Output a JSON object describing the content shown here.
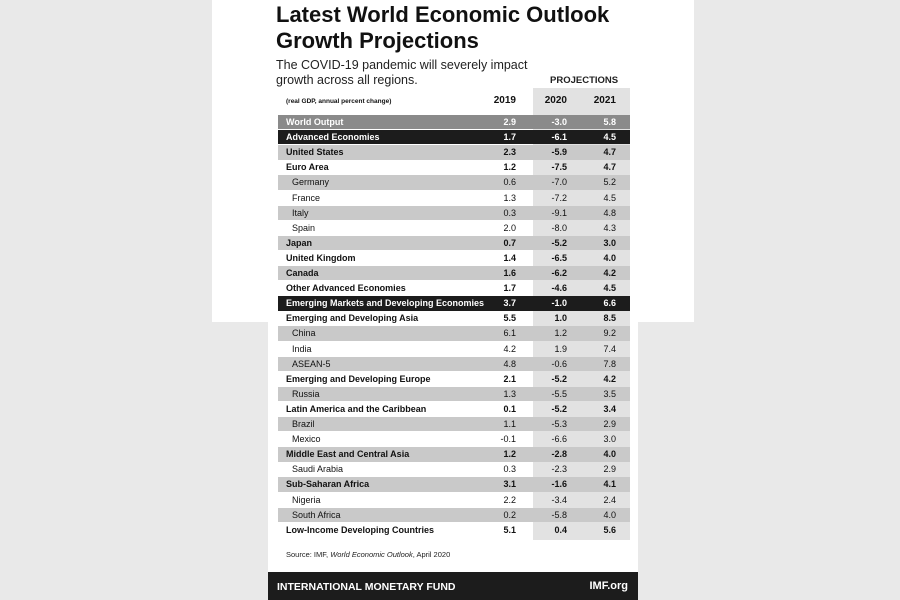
{
  "header": {
    "title": [
      "Latest World Economic Outlook",
      "Growth Projections"
    ],
    "subtitle": "The COVID-19 pandemic will severely impact growth across all regions.",
    "projections_label": "PROJECTIONS"
  },
  "table": {
    "columns": [
      "(real GDP, annual percent change)",
      "2019",
      "2020",
      "2021"
    ],
    "rows": [
      [
        "World Output",
        "2.9",
        "-3.0",
        "5.8"
      ],
      [
        "Advanced Economies",
        "1.7",
        "-6.1",
        "4.5"
      ],
      [
        "United States",
        "2.3",
        "-5.9",
        "4.7"
      ],
      [
        "Euro Area",
        "1.2",
        "-7.5",
        "4.7"
      ],
      [
        "Germany",
        "0.6",
        "-7.0",
        "5.2"
      ],
      [
        "France",
        "1.3",
        "-7.2",
        "4.5"
      ],
      [
        "Italy",
        "0.3",
        "-9.1",
        "4.8"
      ],
      [
        "Spain",
        "2.0",
        "-8.0",
        "4.3"
      ],
      [
        "Japan",
        "0.7",
        "-5.2",
        "3.0"
      ],
      [
        "United Kingdom",
        "1.4",
        "-6.5",
        "4.0"
      ],
      [
        "Canada",
        "1.6",
        "-6.2",
        "4.2"
      ],
      [
        "Other Advanced Economies",
        "1.7",
        "-4.6",
        "4.5"
      ],
      [
        "Emerging Markets and Developing Economies",
        "3.7",
        "-1.0",
        "6.6"
      ],
      [
        "Emerging and Developing Asia",
        "5.5",
        "1.0",
        "8.5"
      ],
      [
        "China",
        "6.1",
        "1.2",
        "9.2"
      ],
      [
        "India",
        "4.2",
        "1.9",
        "7.4"
      ],
      [
        "ASEAN-5",
        "4.8",
        "-0.6",
        "7.8"
      ],
      [
        "Emerging and Developing Europe",
        "2.1",
        "-5.2",
        "4.2"
      ],
      [
        "Russia",
        "1.3",
        "-5.5",
        "3.5"
      ],
      [
        "Latin America and the Caribbean",
        "0.1",
        "-5.2",
        "3.4"
      ],
      [
        "Brazil",
        "1.1",
        "-5.3",
        "2.9"
      ],
      [
        "Mexico",
        "-0.1",
        "-6.6",
        "3.0"
      ],
      [
        "Middle East and Central Asia",
        "1.2",
        "-2.8",
        "4.0"
      ],
      [
        "Saudi Arabia",
        "0.3",
        "-2.3",
        "2.9"
      ],
      [
        "Sub-Saharan Africa",
        "3.1",
        "-1.6",
        "4.1"
      ],
      [
        "Nigeria",
        "2.2",
        "-3.4",
        "2.4"
      ],
      [
        "South Africa",
        "0.2",
        "-5.8",
        "4.0"
      ],
      [
        "Low-Income Developing Countries",
        "5.1",
        "0.4",
        "5.6"
      ]
    ],
    "row_styles": [
      "highlight",
      "dark",
      "region",
      "region",
      "country",
      "country",
      "country",
      "country",
      "region",
      "region",
      "region",
      "region",
      "dark",
      "region",
      "country",
      "country",
      "country",
      "region",
      "country",
      "region",
      "country",
      "country",
      "region",
      "country",
      "region",
      "country",
      "country",
      "region"
    ]
  },
  "footer": {
    "source": [
      "Source: IMF, ",
      "World Economic Outlook",
      ", April 2020"
    ],
    "organization": "INTERNATIONAL MONETARY FUND",
    "website": "IMF.org"
  }
}
